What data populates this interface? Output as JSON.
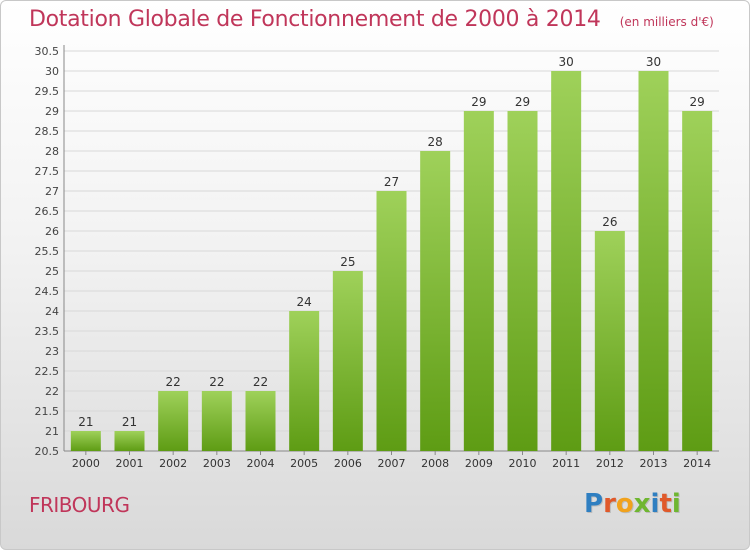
{
  "header": {
    "title": "Dotation Globale de Fonctionnement de 2000 à 2014",
    "unit": "(en milliers d'€)"
  },
  "footer": {
    "city": "FRIBOURG",
    "logo": "Proxiti"
  },
  "colors": {
    "title": "#c0365a",
    "bar_light": "#9fd15a",
    "bar_dark": "#5e9c14"
  },
  "chart_data": {
    "type": "bar",
    "categories": [
      "2000",
      "2001",
      "2002",
      "2003",
      "2004",
      "2005",
      "2006",
      "2007",
      "2008",
      "2009",
      "2010",
      "2011",
      "2012",
      "2013",
      "2014"
    ],
    "values": [
      21,
      21,
      22,
      22,
      22,
      24,
      25,
      27,
      28,
      29,
      29,
      30,
      26,
      30,
      29
    ],
    "title": "Dotation Globale de Fonctionnement de 2000 à 2014",
    "ylim": [
      20.5,
      30.5
    ],
    "yticks": [
      "20.5",
      "21",
      "21.5",
      "22",
      "22.5",
      "23",
      "23.5",
      "24",
      "24.5",
      "25",
      "25.5",
      "26",
      "26.5",
      "27",
      "27.5",
      "28",
      "28.5",
      "29",
      "29.5",
      "30",
      "30.5"
    ],
    "grid": true,
    "data_labels": true
  }
}
